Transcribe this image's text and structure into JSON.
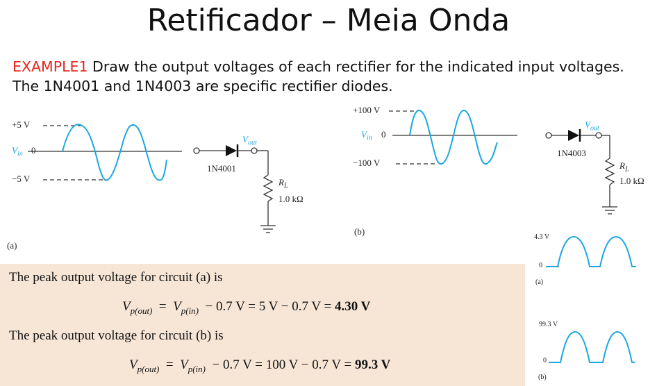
{
  "slide": {
    "title": "Retificador – Meia Onda",
    "example_tag": "EXAMPLE1",
    "example_text": "Draw the output voltages of each rectifier for the indicated input voltages. The 1N4001 and 1N4003 are specific rectifier diodes."
  },
  "circuit_a": {
    "label": "(a)",
    "vin_label": "V",
    "vin_sub": "in",
    "zero_label": "0",
    "pos_peak": "+5 V",
    "neg_peak": "−5 V",
    "diode": "1N4001",
    "vout_label": "V",
    "vout_sub": "out",
    "load_label": "R",
    "load_sub": "L",
    "load_value": "1.0 kΩ"
  },
  "circuit_b": {
    "label": "(b)",
    "vin_label": "V",
    "vin_sub": "in",
    "zero_label": "0",
    "pos_peak": "+100 V",
    "neg_peak": "−100 V",
    "diode": "1N4003",
    "vout_label": "V",
    "vout_sub": "out",
    "load_label": "R",
    "load_sub": "L",
    "load_value": "1.0 kΩ"
  },
  "output_a": {
    "peak": "4.3 V",
    "zero": "0",
    "label": "(a)",
    "half_cycles": 2
  },
  "output_b": {
    "peak": "99.3 V",
    "zero": "0",
    "label": "(b)",
    "half_cycles": 2
  },
  "solution": {
    "sentence_a": "The peak output voltage for circuit (a) is",
    "formula_a": {
      "lhs_v": "V",
      "lhs_sub": "p(out)",
      "rhs_v": "V",
      "rhs_sub": "p(in)",
      "rest": "− 0.7 V = 5 V − 0.7 V =",
      "result": "4.30 V"
    },
    "sentence_b": "The peak output voltage for circuit (b) is",
    "formula_b": {
      "lhs_v": "V",
      "lhs_sub": "p(out)",
      "rhs_v": "V",
      "rhs_sub": "p(in)",
      "rest": "− 0.7 V = 100 V − 0.7 V =",
      "result": "99.3 V"
    }
  },
  "colors": {
    "accent": "#e8251c",
    "wave": "#1aa8e0",
    "panel": "#f7e6d6"
  }
}
